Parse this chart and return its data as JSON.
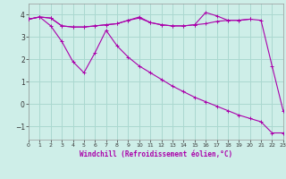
{
  "xlabel": "Windchill (Refroidissement éolien,°C)",
  "background_color": "#ceeee8",
  "grid_color": "#aad8d0",
  "line_color": "#aa00aa",
  "xlim": [
    0,
    23
  ],
  "ylim": [
    -1.6,
    4.5
  ],
  "xticks": [
    0,
    1,
    2,
    3,
    4,
    5,
    6,
    7,
    8,
    9,
    10,
    11,
    12,
    13,
    14,
    15,
    16,
    17,
    18,
    19,
    20,
    21,
    22,
    23
  ],
  "yticks": [
    -1,
    0,
    1,
    2,
    3,
    4
  ],
  "series1_x": [
    0,
    1,
    2,
    3,
    4,
    5,
    6,
    7,
    8,
    9,
    10,
    11,
    12,
    13,
    14,
    15,
    16,
    17,
    18,
    19,
    20
  ],
  "series1_y": [
    3.8,
    3.9,
    3.85,
    3.5,
    3.45,
    3.45,
    3.5,
    3.55,
    3.6,
    3.75,
    3.85,
    3.65,
    3.55,
    3.5,
    3.5,
    3.55,
    3.6,
    3.7,
    3.75,
    3.75,
    3.8
  ],
  "series2_x": [
    0,
    1,
    2,
    3,
    4,
    5,
    6,
    7,
    8,
    9,
    10,
    11,
    12,
    13,
    14,
    15,
    16,
    17,
    18,
    19,
    20,
    21,
    22,
    23
  ],
  "series2_y": [
    3.8,
    3.9,
    3.85,
    3.5,
    3.45,
    3.45,
    3.5,
    3.55,
    3.6,
    3.75,
    3.9,
    3.65,
    3.55,
    3.5,
    3.5,
    3.55,
    4.1,
    3.95,
    3.75,
    3.75,
    3.8,
    3.75,
    1.7,
    -0.3
  ],
  "series3_x": [
    0,
    1,
    2,
    3,
    4,
    5,
    6,
    7,
    8,
    9,
    10,
    11,
    12,
    13,
    14,
    15,
    16,
    17,
    18,
    19,
    20,
    21,
    22,
    23
  ],
  "series3_y": [
    3.8,
    3.9,
    3.5,
    2.8,
    1.9,
    1.4,
    2.3,
    3.3,
    2.6,
    2.1,
    1.7,
    1.4,
    1.1,
    0.8,
    0.55,
    0.3,
    0.1,
    -0.1,
    -0.3,
    -0.5,
    -0.65,
    -0.8,
    -1.3,
    -1.3
  ]
}
